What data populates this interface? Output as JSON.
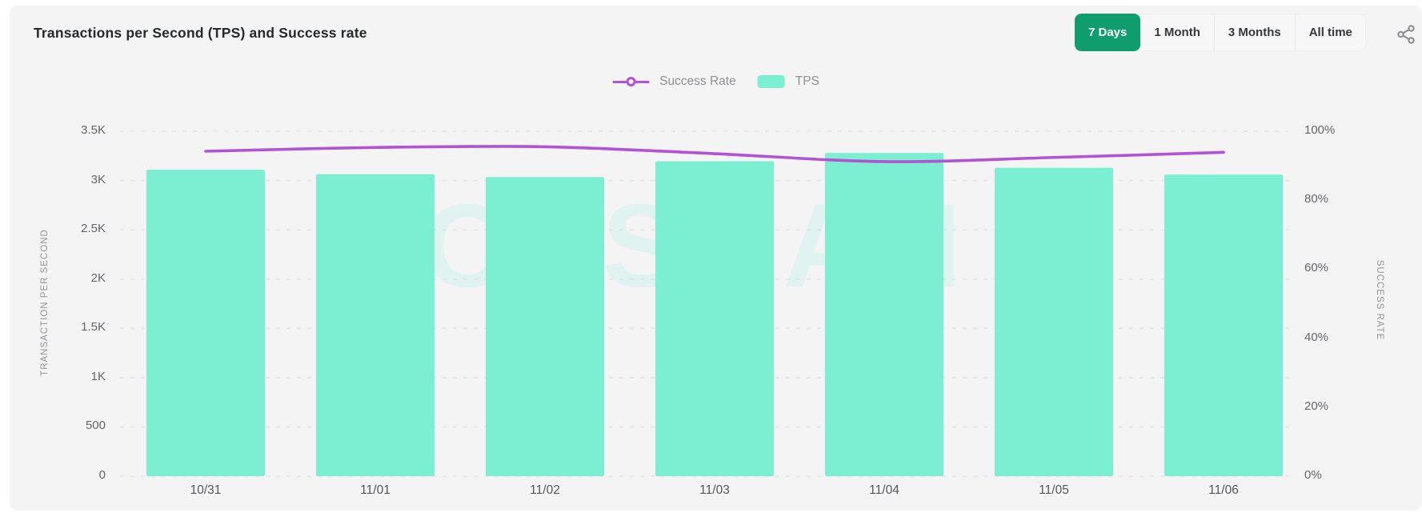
{
  "header": {
    "ranges": [
      {
        "label": "7 Days",
        "active": true
      },
      {
        "label": "1 Month",
        "active": false
      },
      {
        "label": "3 Months",
        "active": false
      },
      {
        "label": "All time",
        "active": false
      }
    ],
    "share_icon": "share-icon"
  },
  "watermark": "SOLSCAN",
  "colors": {
    "panel_bg": "#f4f4f5",
    "bar": "#7cefd3",
    "line": "#b252d4",
    "active_range_bg": "#0f9d6e",
    "active_range_text": "#ffffff",
    "gridline": "#e4e5e7",
    "tick_text": "#636569",
    "title_text": "#26282b"
  },
  "chart_data": {
    "type": "bar",
    "title": "Transactions per Second (TPS) and Success rate",
    "categories": [
      "10/31",
      "11/01",
      "11/02",
      "11/03",
      "11/04",
      "11/05",
      "11/06"
    ],
    "series": [
      {
        "name": "TPS",
        "type": "bar",
        "axis": "left",
        "values": [
          3110,
          3065,
          3035,
          3195,
          3280,
          3130,
          3060
        ]
      },
      {
        "name": "Success Rate",
        "type": "line",
        "axis": "right",
        "values": [
          94.2,
          95.3,
          95.5,
          93.5,
          91.2,
          92.4,
          93.9
        ]
      }
    ],
    "legend": [
      "Success Rate",
      "TPS"
    ],
    "legend_position": "top",
    "grid": true,
    "left_axis": {
      "label": "TRANSACTION PER SECOND",
      "min": 0,
      "max": 3500,
      "ticks": [
        "0",
        "500",
        "1K",
        "1.5K",
        "2K",
        "2.5K",
        "3K",
        "3.5K"
      ]
    },
    "right_axis": {
      "label": "SUCCESS RATE",
      "min": 0,
      "max": 100,
      "ticks": [
        "0%",
        "20%",
        "40%",
        "60%",
        "80%",
        "100%"
      ]
    }
  }
}
